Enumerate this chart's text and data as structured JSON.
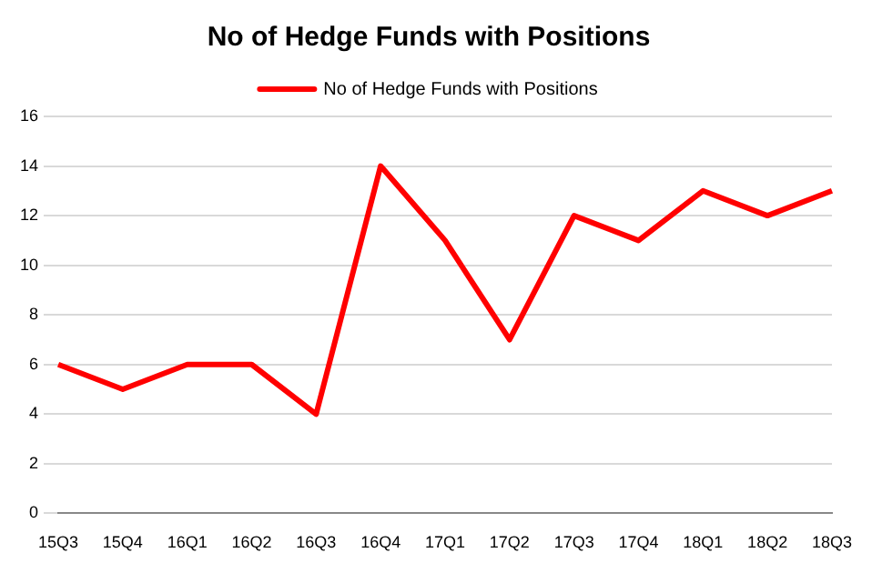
{
  "chart_data": {
    "type": "line",
    "title": "No of Hedge Funds with Positions",
    "categories": [
      "15Q3",
      "15Q4",
      "16Q1",
      "16Q2",
      "16Q3",
      "16Q4",
      "17Q1",
      "17Q2",
      "17Q3",
      "17Q4",
      "18Q1",
      "18Q2",
      "18Q3"
    ],
    "series": [
      {
        "name": "No of Hedge Funds with Positions",
        "color": "#ff0000",
        "values": [
          6,
          5,
          6,
          6,
          4,
          14,
          11,
          7,
          12,
          11,
          13,
          12,
          13
        ]
      }
    ],
    "ylim": [
      0,
      16
    ],
    "yticks": [
      0,
      2,
      4,
      6,
      8,
      10,
      12,
      14,
      16
    ],
    "grid": "y",
    "legend": "top",
    "marker": "none",
    "line_style": "solid"
  }
}
